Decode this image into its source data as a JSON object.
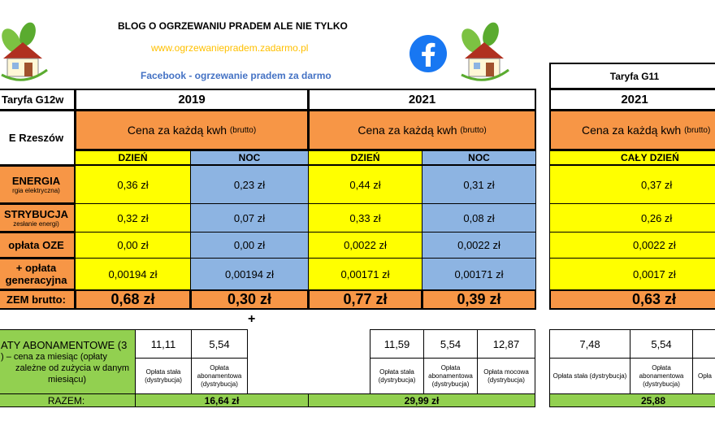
{
  "header": {
    "blog_title": "BLOG O OGRZEWANIU PRADEM ALE NIE TYLKO",
    "url": "www.ogrzewaniepradem.zadarmo.pl",
    "facebook_text": "Facebook - ogrzewanie pradem za darmo",
    "tariff_g11_title": "Taryfa G11"
  },
  "left_labels": {
    "tariff": "Taryfa G12w",
    "operator": "E Rzeszów",
    "energia": "ENERGIA",
    "energia_sub": "rgia elektryczna)",
    "dystrybucja": "STRYBUCJA",
    "dystrybucja_sub": "zesłanie energi)",
    "oze": "opłata OZE",
    "kog1": "+ opłata",
    "kog2": "generacyjna",
    "razem": "ZEM brutto:",
    "abon1": "ATY ABONAMENTOWE (3",
    "abon2": ") – cena za miesiąc     (opłaty",
    "abon3": "zależne od zużycia w danym",
    "abon4": "miesiącu)",
    "abon_razem": "RAZEM:"
  },
  "common": {
    "cena_main": "Cena za każdą kwh",
    "cena_sub": "(brutto)",
    "dzien": "DZIEŃ",
    "noc": "NOC",
    "caly_dzien": "CAŁY DZIEŃ",
    "oplata_stala": "Opłata stała (dystrybucja)",
    "oplata_abon": "Opłata abonamentowa (dystrybucja)",
    "oplata_mocowa": "Opłata mocowa (dystrybucja)",
    "plus": "+"
  },
  "g12w_2019": {
    "year": "2019",
    "energia_d": "0,36 zł",
    "energia_n": "0,23 zł",
    "dyst_d": "0,32 zł",
    "dyst_n": "0,07 zł",
    "oze_d": "0,00 zł",
    "oze_n": "0,00 zł",
    "kog_d": "0,00194 zł",
    "kog_n": "0,00194 zł",
    "razem_d": "0,68 zł",
    "razem_n": "0,30 zł",
    "stala": "11,11",
    "abon": "5,54",
    "suma": "16,64 zł"
  },
  "g12w_2021": {
    "year": "2021",
    "energia_d": "0,44 zł",
    "energia_n": "0,31 zł",
    "dyst_d": "0,33 zł",
    "dyst_n": "0,08 zł",
    "oze_d": "0,0022 zł",
    "oze_n": "0,0022 zł",
    "kog_d": "0,00171 zł",
    "kog_n": "0,00171 zł",
    "razem_d": "0,77 zł",
    "razem_n": "0,39 zł",
    "stala": "11,59",
    "abon": "5,54",
    "mocowa": "12,87",
    "suma": "29,99 zł"
  },
  "g11_2021": {
    "year": "2021",
    "energia": "0,37 zł",
    "dyst": "0,26 zł",
    "oze": "0,0022 zł",
    "kog": "0,0017 zł",
    "razem": "0,63 zł",
    "stala": "7,48",
    "abon": "5,54",
    "suma": "25,88"
  },
  "colors": {
    "yellow": "#ffff00",
    "blue": "#8db4e2",
    "orange": "#f79646",
    "green": "#92d050",
    "facebook": "#1877f2",
    "link": "#4472c4",
    "url": "#ffc000"
  }
}
